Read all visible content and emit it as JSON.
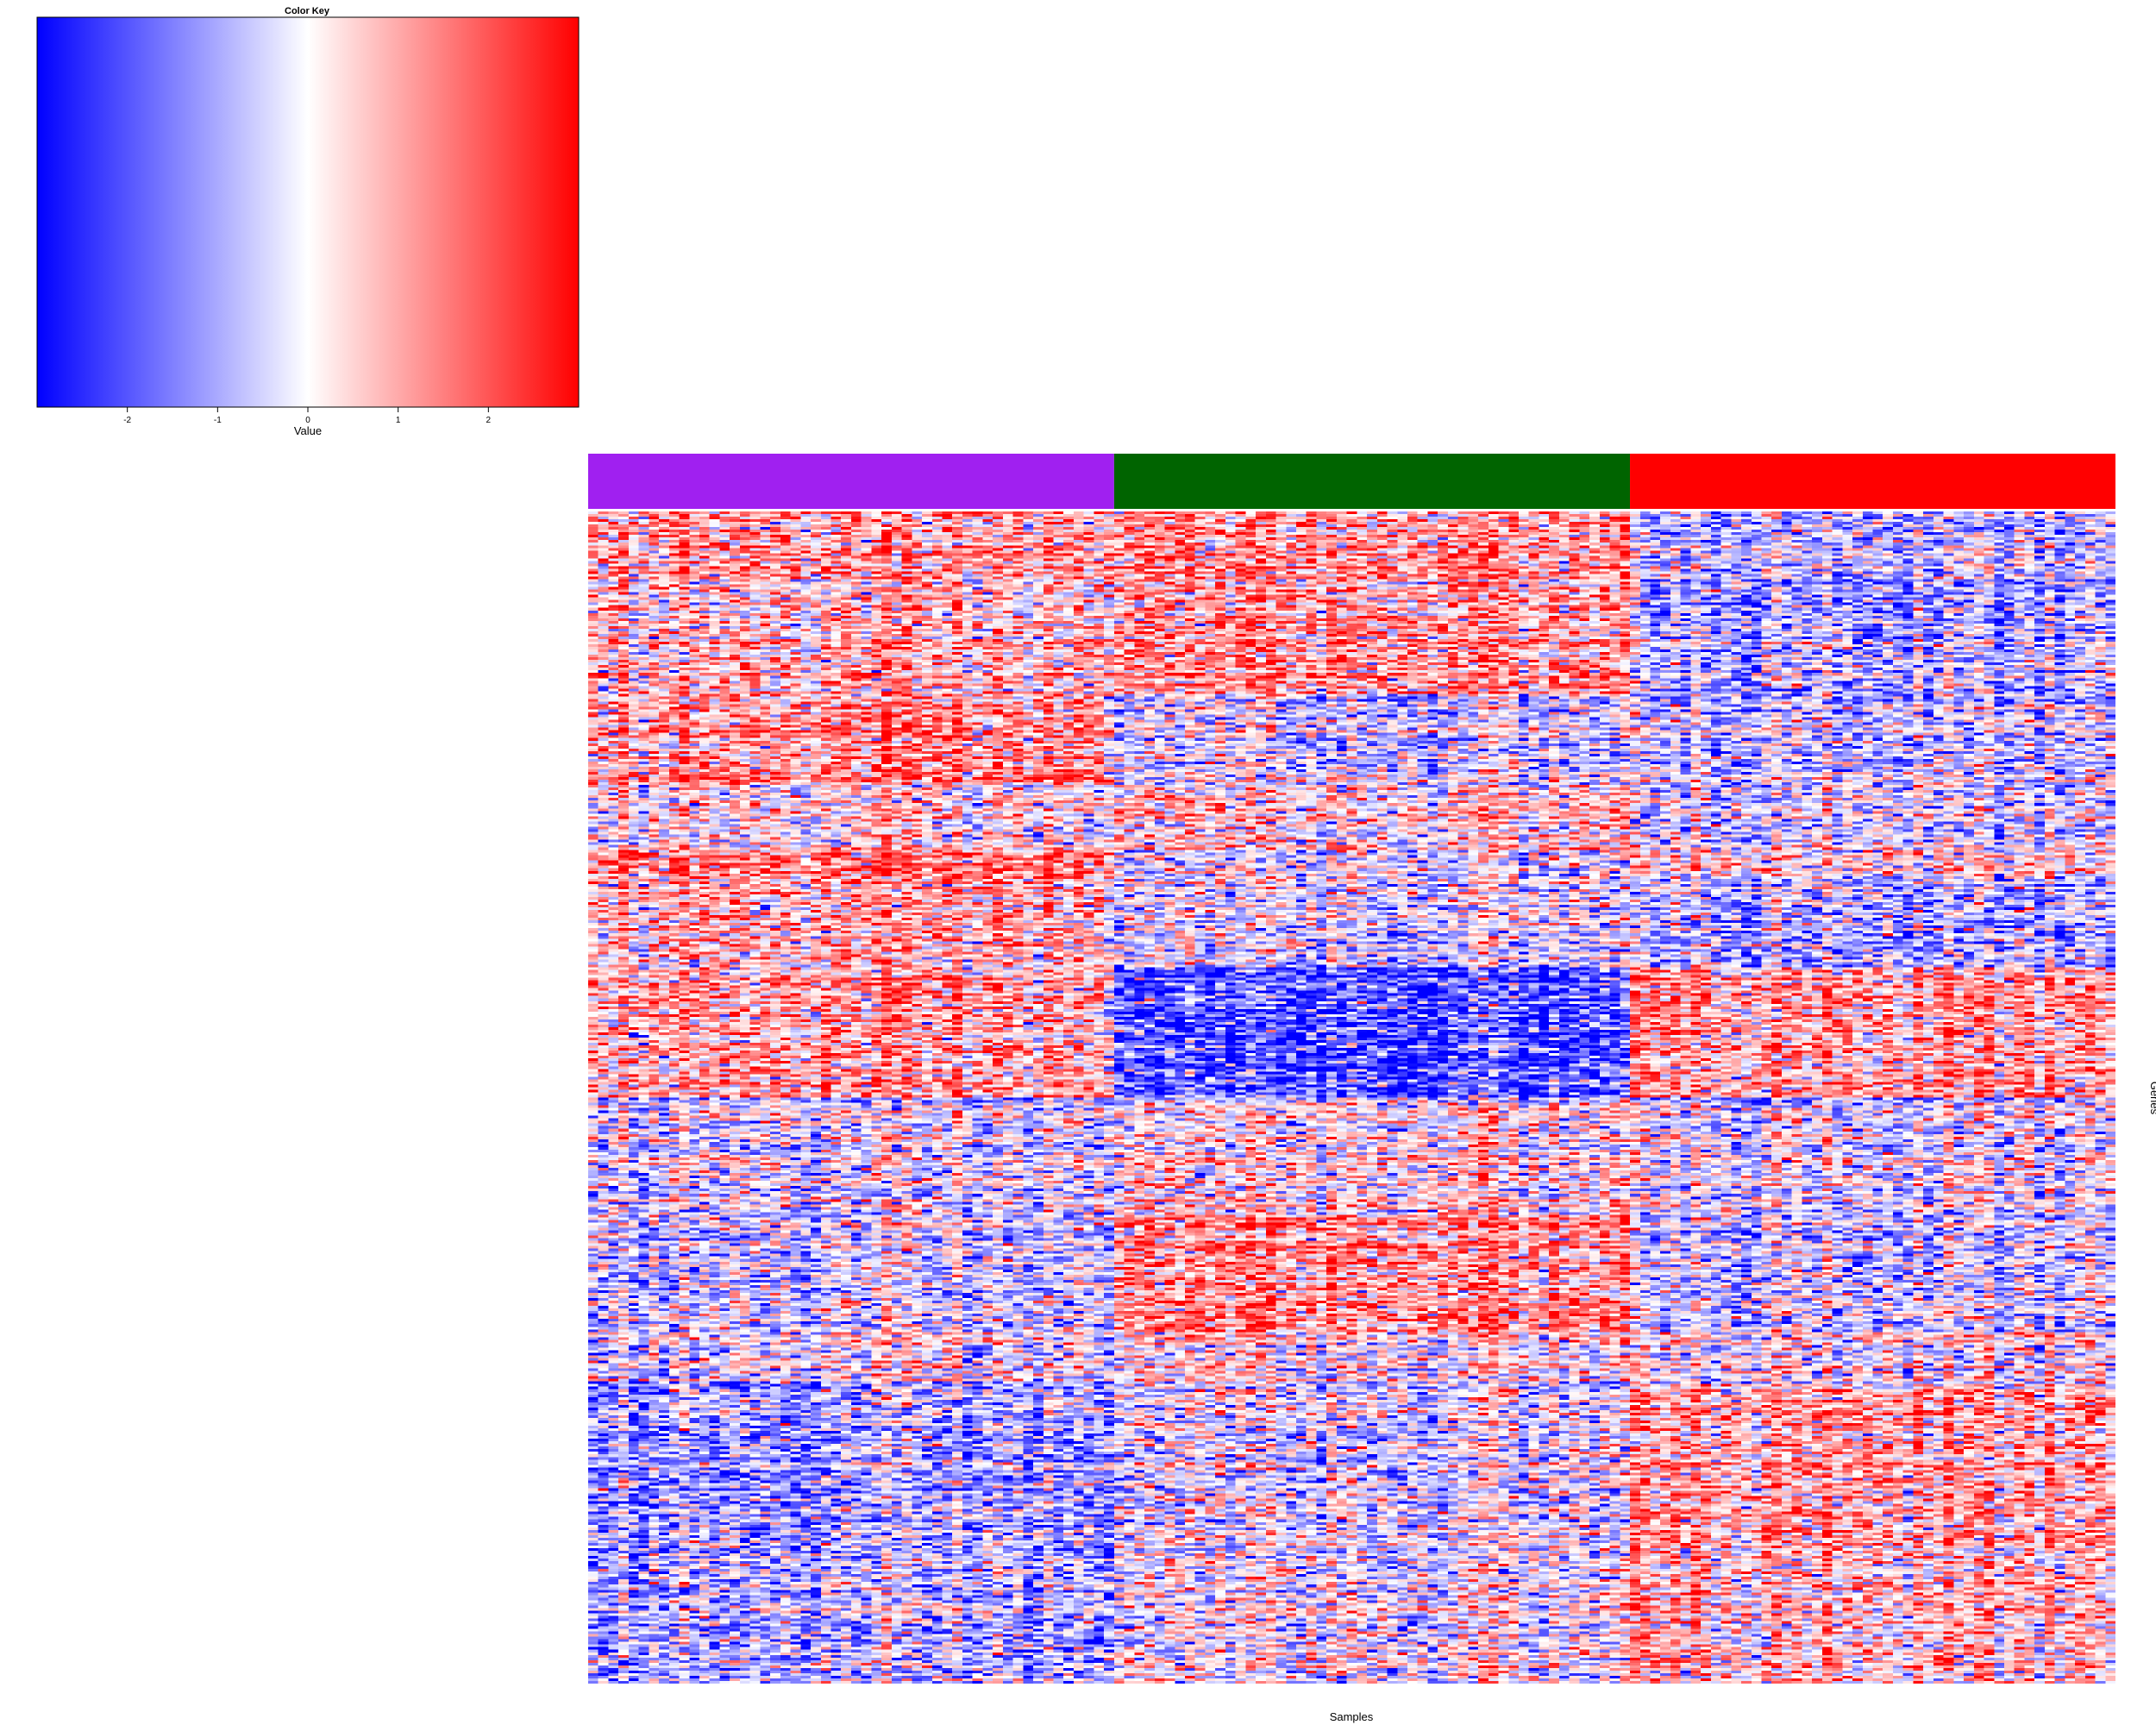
{
  "chart_data": {
    "type": "heatmap",
    "color_key": {
      "title": "Color Key",
      "xlabel": "Value",
      "range": [
        -3,
        3
      ],
      "ticks": [
        -2,
        -1,
        0,
        1,
        2
      ],
      "tick_labels": [
        "-2",
        "-1",
        "0",
        "1",
        "2"
      ],
      "colors": {
        "low": "#0000ff",
        "mid": "#ffffff",
        "high": "#ff0000"
      }
    },
    "xlabel": "Samples",
    "ylabel": "Genes",
    "n_samples": 151,
    "n_genes": 450,
    "sample_groups": [
      {
        "count": 52,
        "color": "#a020f0"
      },
      {
        "count": 51,
        "color": "#006400"
      },
      {
        "count": 48,
        "color": "#ff0000"
      }
    ],
    "gene_blocks": [
      {
        "rows": 30,
        "means": [
          0.6,
          0.7,
          -0.6
        ]
      },
      {
        "rows": 40,
        "means": [
          0.4,
          0.8,
          -0.7
        ]
      },
      {
        "rows": 35,
        "means": [
          0.9,
          -0.3,
          -0.4
        ]
      },
      {
        "rows": 25,
        "means": [
          0.2,
          0.4,
          -0.2
        ]
      },
      {
        "rows": 10,
        "means": [
          1.2,
          -0.2,
          0.3
        ]
      },
      {
        "rows": 35,
        "means": [
          0.5,
          -0.2,
          -0.6
        ]
      },
      {
        "rows": 50,
        "means": [
          0.7,
          -1.5,
          0.8
        ]
      },
      {
        "rows": 45,
        "means": [
          -0.3,
          0.1,
          -0.2
        ]
      },
      {
        "rows": 45,
        "means": [
          -0.5,
          0.8,
          -0.5
        ]
      },
      {
        "rows": 20,
        "means": [
          -0.1,
          0.1,
          0.0
        ]
      },
      {
        "rows": 65,
        "means": [
          -0.8,
          -0.2,
          0.7
        ]
      },
      {
        "rows": 50,
        "means": [
          -0.7,
          -0.1,
          0.4
        ]
      }
    ]
  }
}
